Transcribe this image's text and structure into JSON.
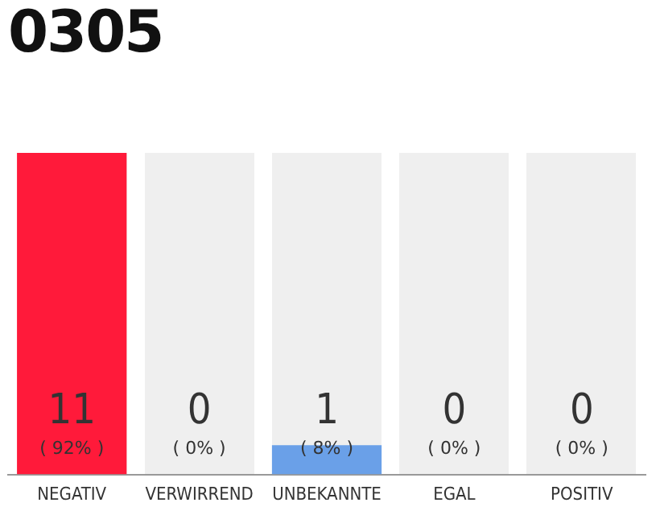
{
  "chart_data": {
    "type": "bar",
    "title": "0305",
    "categories": [
      "NEGATIV",
      "VERWIRREND",
      "UNBEKANNTE",
      "EGAL",
      "POSITIV"
    ],
    "values": [
      11,
      0,
      1,
      0,
      0
    ],
    "colors": [
      "#ff1a3a",
      "#6aa0e8",
      "#6aa0e8",
      "#6aa0e8",
      "#6aa0e8"
    ],
    "value_labels": [
      "11\n( 92% )",
      "0\n( 0% )",
      "1\n( 8% )",
      "0\n( 0% )",
      "0\n( 0% )"
    ],
    "tick_labels": "x",
    "grid": false,
    "legend": false
  }
}
